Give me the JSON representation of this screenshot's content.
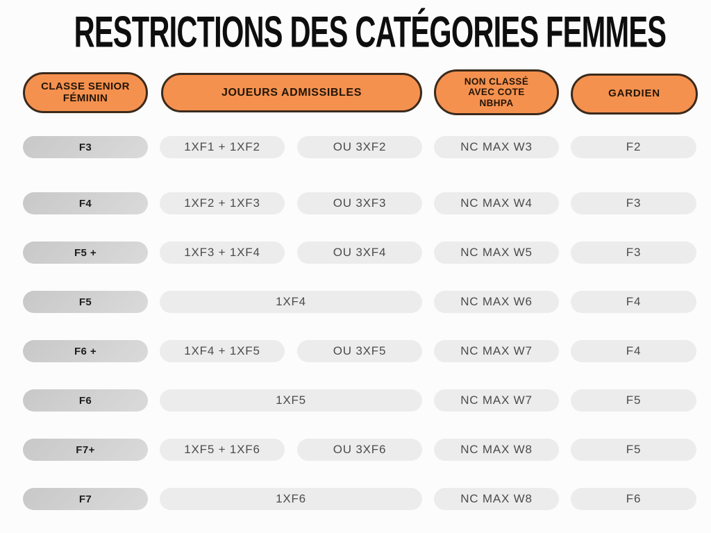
{
  "title": "RESTRICTIONS DES CATÉGORIES FEMMES",
  "colors": {
    "accent_orange": "#F5914F",
    "pill_border_brown": "#3A2A1C",
    "class_pill_gray": "#D2D2D2",
    "cell_pill_gray": "#ECECEC",
    "title_black": "#0E0E0E"
  },
  "headers": {
    "classe": "CLASSE SENIOR\nFÉMININ",
    "admissibles": "JOUEURS ADMISSIBLES",
    "non_classe": "NON CLASSÉ\nAVEC COTE\nNBHPA",
    "gardien": "GARDIEN"
  },
  "rows": [
    {
      "classe": "F3",
      "admissibles": "1XF1 + 1XF2",
      "ou": "OU 3XF2",
      "nc": "NC MAX W3",
      "gardien": "F2"
    },
    {
      "classe": "F4",
      "admissibles": "1XF2 + 1XF3",
      "ou": "OU 3XF3",
      "nc": "NC MAX W4",
      "gardien": "F3"
    },
    {
      "classe": "F5 +",
      "admissibles": "1XF3 + 1XF4",
      "ou": "OU 3XF4",
      "nc": "NC MAX W5",
      "gardien": "F3"
    },
    {
      "classe": "F5",
      "admissibles": "1XF4",
      "nc": "NC MAX W6",
      "gardien": "F4"
    },
    {
      "classe": "F6 +",
      "admissibles": "1XF4 + 1XF5",
      "ou": "OU 3XF5",
      "nc": "NC MAX W7",
      "gardien": "F4"
    },
    {
      "classe": "F6",
      "admissibles": "1XF5",
      "nc": "NC MAX W7",
      "gardien": "F5"
    },
    {
      "classe": "F7+",
      "admissibles": "1XF5 + 1XF6",
      "ou": "OU 3XF6",
      "nc": "NC MAX W8",
      "gardien": "F5"
    },
    {
      "classe": "F7",
      "admissibles": "1XF6",
      "nc": "NC MAX W8",
      "gardien": "F6"
    }
  ]
}
